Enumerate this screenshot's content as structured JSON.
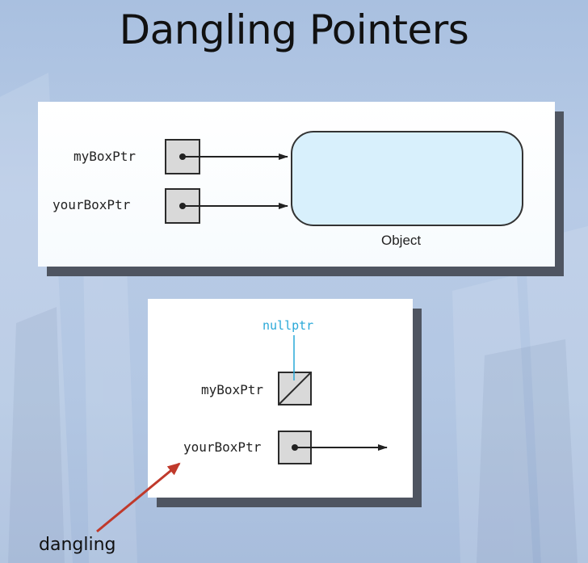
{
  "slide": {
    "title": "Dangling Pointers"
  },
  "figure_top": {
    "pointers": [
      {
        "name": "myBoxPtr"
      },
      {
        "name": "yourBoxPtr"
      }
    ],
    "object_caption": "Object"
  },
  "figure_bottom": {
    "null_label": "nullptr",
    "pointers": [
      {
        "name": "myBoxPtr"
      },
      {
        "name": "yourBoxPtr"
      }
    ]
  },
  "annotation": {
    "dangling_label": "dangling",
    "arrow_color": "#c0392b"
  },
  "colors": {
    "object_fill": "#d8f0fc",
    "nullptr_text": "#29a8d8",
    "pointer_box_fill": "#d9d9d9",
    "panel_shadow": "#4f5561"
  }
}
